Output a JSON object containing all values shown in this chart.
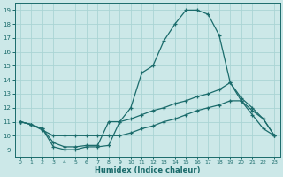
{
  "xlabel": "Humidex (Indice chaleur)",
  "bg_color": "#cce8e8",
  "grid_color": "#aad4d4",
  "line_color": "#1a6b6b",
  "xlim": [
    -0.5,
    23.5
  ],
  "ylim": [
    8.5,
    19.5
  ],
  "xticks": [
    0,
    1,
    2,
    3,
    4,
    5,
    6,
    7,
    8,
    9,
    10,
    11,
    12,
    13,
    14,
    15,
    16,
    17,
    18,
    19,
    20,
    21,
    22,
    23
  ],
  "yticks": [
    9,
    10,
    11,
    12,
    13,
    14,
    15,
    16,
    17,
    18,
    19
  ],
  "curve_top_x": [
    0,
    1,
    2,
    3,
    4,
    5,
    6,
    7,
    8,
    9,
    10,
    11,
    12,
    13,
    14,
    15,
    16,
    17,
    18,
    19,
    20,
    21,
    22,
    23
  ],
  "curve_top_y": [
    11.0,
    10.8,
    10.5,
    9.2,
    9.0,
    9.0,
    9.2,
    9.2,
    9.3,
    11.0,
    12.0,
    14.5,
    15.0,
    16.8,
    18.0,
    19.0,
    19.0,
    18.7,
    17.2,
    13.8,
    12.5,
    11.5,
    10.5,
    10.0
  ],
  "curve_mid_x": [
    0,
    1,
    2,
    3,
    4,
    5,
    6,
    7,
    8,
    9,
    10,
    11,
    12,
    13,
    14,
    15,
    16,
    17,
    18,
    19,
    20,
    21,
    22,
    23
  ],
  "curve_mid_y": [
    11.0,
    10.8,
    10.5,
    9.5,
    9.2,
    9.2,
    9.3,
    9.3,
    11.0,
    11.0,
    11.2,
    11.5,
    11.8,
    12.0,
    12.3,
    12.5,
    12.8,
    13.0,
    13.3,
    13.8,
    12.7,
    12.0,
    11.2,
    10.0
  ],
  "curve_bot_x": [
    0,
    1,
    2,
    3,
    4,
    5,
    6,
    7,
    8,
    9,
    10,
    11,
    12,
    13,
    14,
    15,
    16,
    17,
    18,
    19,
    20,
    21,
    22,
    23
  ],
  "curve_bot_y": [
    11.0,
    10.8,
    10.4,
    10.0,
    10.0,
    10.0,
    10.0,
    10.0,
    10.0,
    10.0,
    10.2,
    10.5,
    10.7,
    11.0,
    11.2,
    11.5,
    11.8,
    12.0,
    12.2,
    12.5,
    12.5,
    11.8,
    11.2,
    10.0
  ]
}
